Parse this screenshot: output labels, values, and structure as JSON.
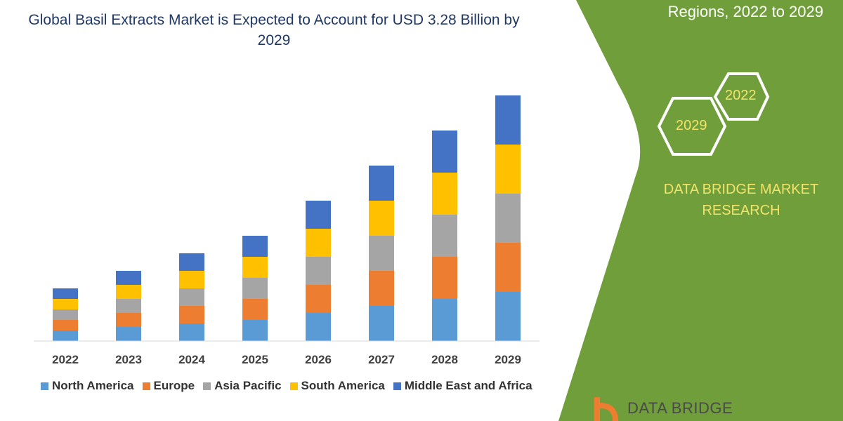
{
  "title": "Global Basil Extracts Market is Expected to Account for USD 3.28 Billion by 2029",
  "side_panel": {
    "subtitle": "Regions, 2022 to 2029",
    "hex_years": [
      "2022",
      "2029"
    ],
    "brand": "DATA BRIDGE MARKET RESEARCH",
    "logo_text": "DATA BRIDGE",
    "panel_color": "#6f9e3a",
    "text_color": "#f2e36a"
  },
  "chart_data": {
    "type": "bar",
    "stacked": true,
    "title": "Global Basil Extracts Market is Expected to Account for USD 3.28 Billion by 2029",
    "categories": [
      "2022",
      "2023",
      "2024",
      "2025",
      "2026",
      "2027",
      "2028",
      "2029"
    ],
    "y_axis_shown": false,
    "grid": false,
    "legend_position": "bottom",
    "series": [
      {
        "name": "North America",
        "color": "#5b9bd5",
        "values": [
          1.5,
          2,
          2.5,
          3,
          4,
          5,
          6,
          7
        ]
      },
      {
        "name": "Europe",
        "color": "#ed7d31",
        "values": [
          1.5,
          2,
          2.5,
          3,
          4,
          5,
          6,
          7
        ]
      },
      {
        "name": "Asia Pacific",
        "color": "#a5a5a5",
        "values": [
          1.5,
          2,
          2.5,
          3,
          4,
          5,
          6,
          7
        ]
      },
      {
        "name": "South America",
        "color": "#ffc000",
        "values": [
          1.5,
          2,
          2.5,
          3,
          4,
          5,
          6,
          7
        ]
      },
      {
        "name": "Middle East and Africa",
        "color": "#4472c4",
        "values": [
          1.5,
          2,
          2.5,
          3,
          4,
          5,
          6,
          7
        ]
      }
    ]
  }
}
